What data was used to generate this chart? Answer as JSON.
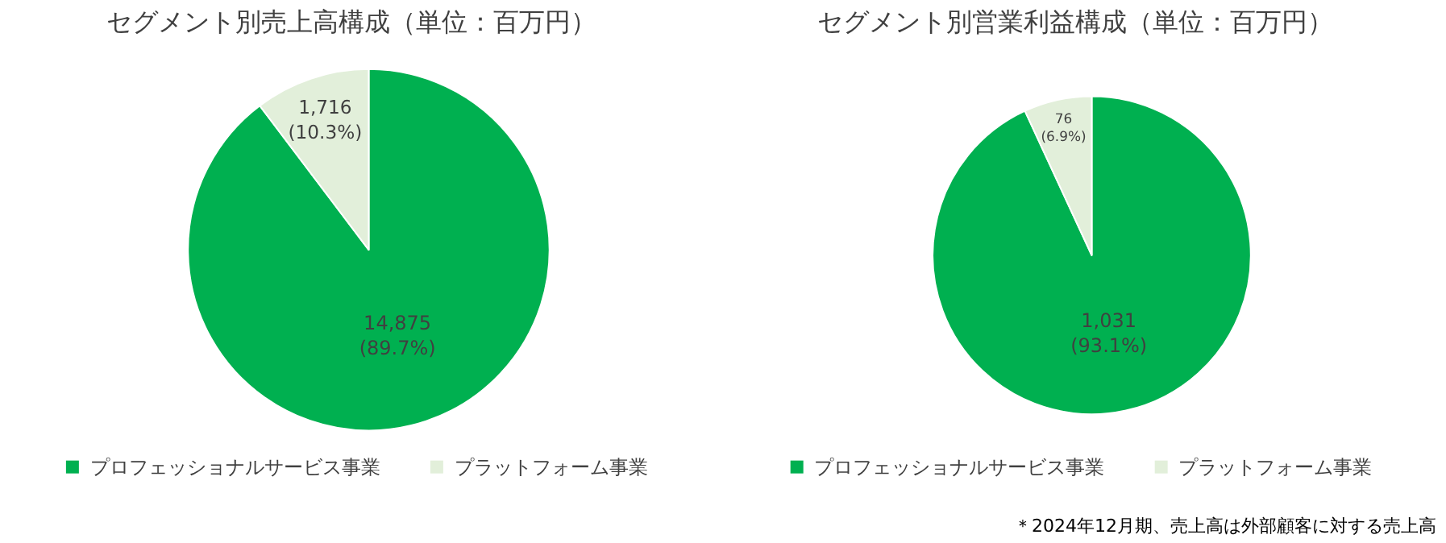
{
  "chart_data": [
    {
      "type": "pie",
      "title": "セグメント別売上高構成（単位：百万円）",
      "categories": [
        "プロフェッショナルサービス事業",
        "プラットフォーム事業"
      ],
      "values": [
        89.7,
        10.3
      ],
      "colors": [
        "#00b050",
        "#e2efda"
      ],
      "value_labels": [
        "14,875\n(89.7%)",
        "1,716\n(10.3%)"
      ],
      "legend": "bottom"
    },
    {
      "type": "pie",
      "title": "セグメント別営業利益構成（単位：百万円）",
      "categories": [
        "プロフェッショナルサービス事業",
        "プラットフォーム事業"
      ],
      "values": [
        93.1,
        6.9
      ],
      "colors": [
        "#00b050",
        "#e2efda"
      ],
      "value_labels": [
        "1,031\n(93.1%)",
        "76\n(6.9%)"
      ],
      "legend": "bottom",
      "annotations": [
        "＊2024年12月期、売上高は外部顧客に対する売上高"
      ]
    }
  ]
}
